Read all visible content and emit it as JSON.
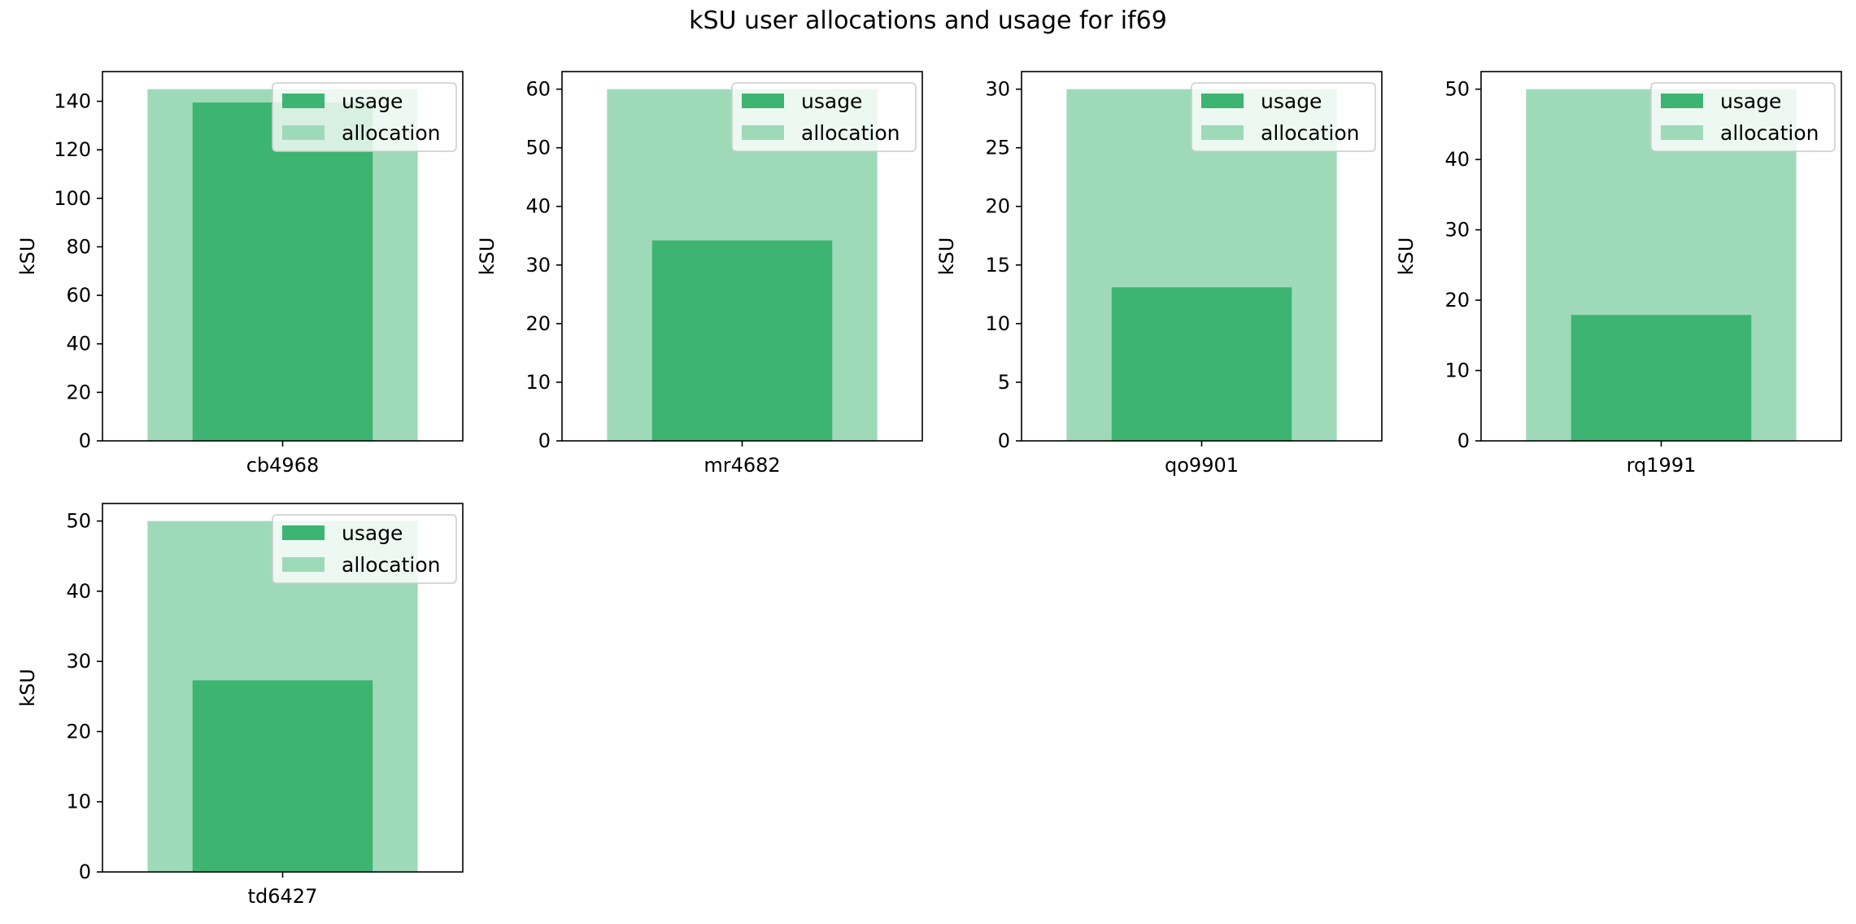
{
  "figure": {
    "title": "kSU user allocations and usage for if69"
  },
  "colors": {
    "usage": "#3db471",
    "allocation": "#9fdab8",
    "frame": "#000000",
    "legend_bg": "#ffffff",
    "legend_border": "#cccccc"
  },
  "chart_data": [
    {
      "type": "bar",
      "categories": [
        "cb4968"
      ],
      "series": [
        {
          "name": "allocation",
          "values": [
            145
          ]
        },
        {
          "name": "usage",
          "values": [
            139.5
          ]
        }
      ],
      "ylabel": "kSU",
      "ylim": [
        0,
        152.25
      ],
      "yticks": [
        0,
        20,
        40,
        60,
        80,
        100,
        120,
        140
      ],
      "legend": [
        "usage",
        "allocation"
      ],
      "legend_loc": "top-right"
    },
    {
      "type": "bar",
      "categories": [
        "mr4682"
      ],
      "series": [
        {
          "name": "allocation",
          "values": [
            60
          ]
        },
        {
          "name": "usage",
          "values": [
            34.2
          ]
        }
      ],
      "ylabel": "kSU",
      "ylim": [
        0,
        63
      ],
      "yticks": [
        0,
        10,
        20,
        30,
        40,
        50,
        60
      ],
      "legend": [
        "usage",
        "allocation"
      ],
      "legend_loc": "top-right"
    },
    {
      "type": "bar",
      "categories": [
        "qo9901"
      ],
      "series": [
        {
          "name": "allocation",
          "values": [
            30
          ]
        },
        {
          "name": "usage",
          "values": [
            13.1
          ]
        }
      ],
      "ylabel": "kSU",
      "ylim": [
        0,
        31.5
      ],
      "yticks": [
        0,
        5,
        10,
        15,
        20,
        25,
        30
      ],
      "legend": [
        "usage",
        "allocation"
      ],
      "legend_loc": "top-right"
    },
    {
      "type": "bar",
      "categories": [
        "rq1991"
      ],
      "series": [
        {
          "name": "allocation",
          "values": [
            50
          ]
        },
        {
          "name": "usage",
          "values": [
            17.9
          ]
        }
      ],
      "ylabel": "kSU",
      "ylim": [
        0,
        52.5
      ],
      "yticks": [
        0,
        10,
        20,
        30,
        40,
        50
      ],
      "legend": [
        "usage",
        "allocation"
      ],
      "legend_loc": "top-right"
    },
    {
      "type": "bar",
      "categories": [
        "td6427"
      ],
      "series": [
        {
          "name": "allocation",
          "values": [
            50
          ]
        },
        {
          "name": "usage",
          "values": [
            27.3
          ]
        }
      ],
      "ylabel": "kSU",
      "ylim": [
        0,
        52.5
      ],
      "yticks": [
        0,
        10,
        20,
        30,
        40,
        50
      ],
      "legend": [
        "usage",
        "allocation"
      ],
      "legend_loc": "top-right"
    }
  ]
}
